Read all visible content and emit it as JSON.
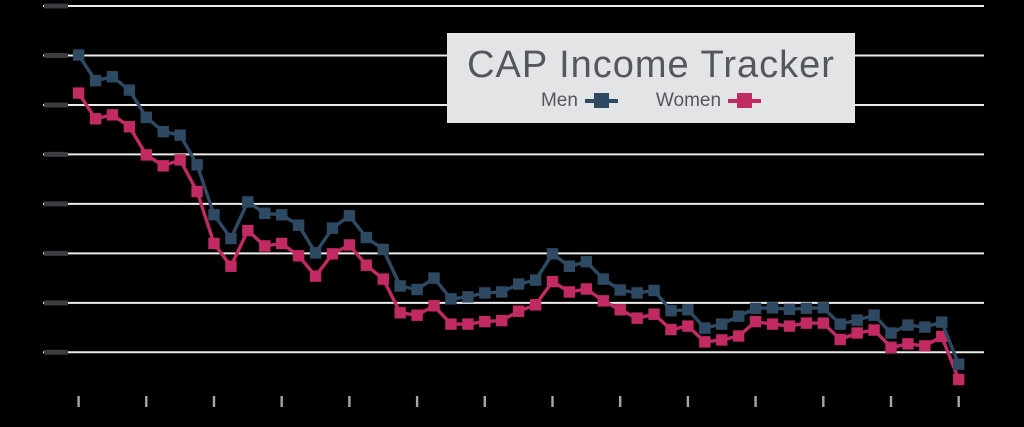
{
  "title": "CAP Income Tracker",
  "legend": {
    "men_label": "Men",
    "women_label": "Women"
  },
  "colors": {
    "background": "#000000",
    "men": "#2e4a62",
    "women": "#c12a62",
    "gridline": "#ececec",
    "tick": "#a3a7ab",
    "legend_background": "#e3e4e6",
    "legend_text": "#54585e",
    "axis_label_smudge": "#3b3d40"
  },
  "chart_data": {
    "type": "line",
    "title": "CAP Income Tracker",
    "legend_position": "top-center overlay box",
    "grid": "horizontal gridlines only",
    "x": [
      1,
      2,
      3,
      4,
      5,
      6,
      7,
      8,
      9,
      10,
      11,
      12,
      13,
      14,
      15,
      16,
      17,
      18,
      19,
      20,
      21,
      22,
      23,
      24,
      25,
      26,
      27,
      28,
      29,
      30,
      31,
      32,
      33,
      34,
      35,
      36,
      37,
      38,
      39,
      40,
      41,
      42,
      43,
      44,
      45,
      46,
      47,
      48,
      49,
      50,
      51,
      52,
      53
    ],
    "x_axis": {
      "tick_count": 14,
      "tick_every_n_points": 4,
      "tick_labels_visible": false
    },
    "y_axis": {
      "gridline_count": 8,
      "unit": "gridline intervals above bottom gridline",
      "ylim": [
        -1,
        7
      ],
      "tick_labels_visible": false,
      "tick_labels_note": "tiny dark labels present at left of each gridline but illegible in source image"
    },
    "series": [
      {
        "name": "Men",
        "color": "#2e4a62",
        "values": [
          6.01,
          5.49,
          5.57,
          5.3,
          4.75,
          4.46,
          4.39,
          3.79,
          2.78,
          2.3,
          3.04,
          2.81,
          2.78,
          2.57,
          2.01,
          2.51,
          2.76,
          2.32,
          2.08,
          1.34,
          1.27,
          1.5,
          1.08,
          1.12,
          1.2,
          1.22,
          1.38,
          1.46,
          1.99,
          1.74,
          1.83,
          1.48,
          1.26,
          1.2,
          1.25,
          0.84,
          0.86,
          0.49,
          0.57,
          0.73,
          0.89,
          0.9,
          0.87,
          0.89,
          0.9,
          0.57,
          0.65,
          0.75,
          0.39,
          0.55,
          0.51,
          0.61,
          -0.24
        ]
      },
      {
        "name": "Women",
        "color": "#c12a62",
        "values": [
          5.24,
          4.72,
          4.8,
          4.56,
          3.99,
          3.77,
          3.89,
          3.25,
          2.2,
          1.74,
          2.46,
          2.15,
          2.2,
          1.95,
          1.54,
          1.99,
          2.17,
          1.76,
          1.48,
          0.8,
          0.75,
          0.94,
          0.57,
          0.57,
          0.62,
          0.64,
          0.83,
          0.96,
          1.43,
          1.22,
          1.28,
          1.04,
          0.86,
          0.69,
          0.77,
          0.46,
          0.53,
          0.21,
          0.25,
          0.33,
          0.62,
          0.57,
          0.53,
          0.59,
          0.59,
          0.26,
          0.39,
          0.45,
          0.1,
          0.17,
          0.13,
          0.32,
          -0.55
        ]
      }
    ]
  }
}
